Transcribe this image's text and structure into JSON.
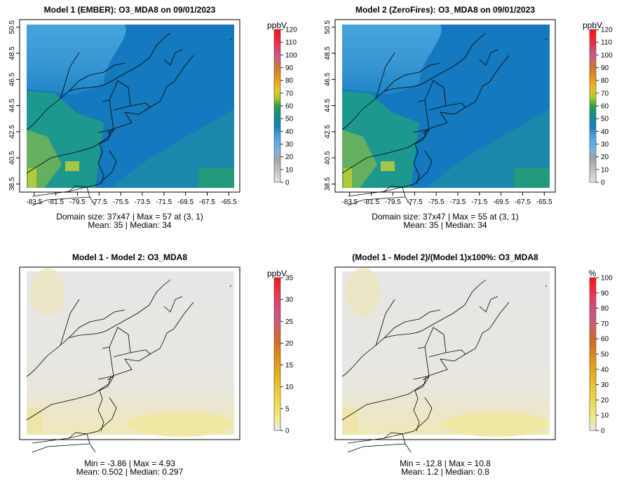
{
  "chart_data": [
    {
      "type": "heatmap",
      "title": "Model 1 (EMBER): O3_MDA8 on 09/01/2023",
      "x_ticks": [
        "-83.5",
        "-81.5",
        "-79.5",
        "-77.5",
        "-75.5",
        "-73.5",
        "-71.5",
        "-69.5",
        "-67.5",
        "-65.5"
      ],
      "y_ticks": [
        "38.5",
        "40.5",
        "42.5",
        "44.5",
        "46.5",
        "48.5",
        "50.5"
      ],
      "xlim": [
        -84.2,
        -65.0
      ],
      "ylim": [
        38.2,
        50.7
      ],
      "colorbar": {
        "unit": "ppbV",
        "min": 0,
        "max": 120,
        "ticks": [
          "0",
          "10",
          "20",
          "30",
          "40",
          "50",
          "60",
          "70",
          "80",
          "90",
          "100",
          "110",
          "120"
        ]
      },
      "stats": [
        "Domain size: 37x47 | Max = 57 at (3, 1)",
        "Mean: 35 |  Median: 34"
      ],
      "summary": {
        "grid": "37x47",
        "max": 57,
        "max_location": "(3, 1)",
        "mean": 35,
        "median": 34
      }
    },
    {
      "type": "heatmap",
      "title": "Model 2 (ZeroFires): O3_MDA8 on 09/01/2023",
      "x_ticks": [
        "-83.5",
        "-81.5",
        "-79.5",
        "-77.5",
        "-75.5",
        "-73.5",
        "-71.5",
        "-69.5",
        "-67.5",
        "-65.5"
      ],
      "y_ticks": [
        "38.5",
        "40.5",
        "42.5",
        "44.5",
        "46.5",
        "48.5",
        "50.5"
      ],
      "xlim": [
        -84.2,
        -65.0
      ],
      "ylim": [
        38.2,
        50.7
      ],
      "colorbar": {
        "unit": "ppbV",
        "min": 0,
        "max": 120,
        "ticks": [
          "0",
          "10",
          "20",
          "30",
          "40",
          "50",
          "60",
          "70",
          "80",
          "90",
          "100",
          "110",
          "120"
        ]
      },
      "stats": [
        "Domain size: 37x47 | Max = 55 at (3, 1)",
        "Mean: 35 |  Median: 34"
      ],
      "summary": {
        "grid": "37x47",
        "max": 55,
        "max_location": "(3, 1)",
        "mean": 35,
        "median": 34
      }
    },
    {
      "type": "heatmap",
      "title": "Model 1 - Model 2: O3_MDA8",
      "colorbar": {
        "unit": "ppbV",
        "min": 0,
        "max": 35,
        "ticks": [
          "0",
          "5",
          "10",
          "15",
          "20",
          "25",
          "30",
          "35"
        ]
      },
      "stats": [
        "Min = -3.86 | Max = 4.93",
        "Mean: 0.502 |  Median: 0.297"
      ],
      "summary": {
        "min": -3.86,
        "max": 4.93,
        "mean": 0.502,
        "median": 0.297
      }
    },
    {
      "type": "heatmap",
      "title": "(Model 1 - Model 2)/(Model 1)x100%: O3_MDA8",
      "colorbar": {
        "unit": "%",
        "min": 0,
        "max": 100,
        "ticks": [
          "0",
          "10",
          "20",
          "30",
          "40",
          "50",
          "60",
          "70",
          "80",
          "90",
          "100"
        ]
      },
      "stats": [
        "Min = -12.8 | Max = 10.8",
        "Mean: 1.2 |  Median: 0.8"
      ],
      "summary": {
        "min": -12.8,
        "max": 10.8,
        "mean": 1.2,
        "median": 0.8
      }
    }
  ]
}
